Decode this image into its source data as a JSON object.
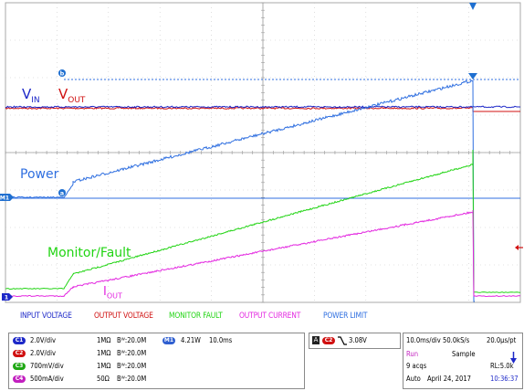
{
  "colors": {
    "vin": "#1d28c8",
    "vout": "#d01010",
    "power": "#2f6fe0",
    "monitor": "#22d414",
    "current": "#e327e0",
    "marker": "#1f6fd0"
  },
  "waveform_labels": {
    "vin_main": "V",
    "vin_sub": "IN",
    "vout_main": "V",
    "vout_sub": "OUT",
    "power": "Power",
    "monitor": "Monitor/Fault",
    "iout_main": "I",
    "iout_sub": "OUT"
  },
  "markers": {
    "ref_a": "b",
    "ref_b": "a",
    "m1": "M1",
    "ch1": "1"
  },
  "legend": [
    "INPUT VOLTAGE",
    "OUTPUT VOLTAGE",
    "MONITOR FAULT",
    "OUTPUT CURRENT",
    "POWER LIMIT"
  ],
  "channels": [
    {
      "id": "C1",
      "scale": "2.0V/div",
      "coupling": "1MΩ",
      "bw": "Bᵂ:20.0M",
      "color": "#1d28c8"
    },
    {
      "id": "C2",
      "scale": "2.0V/div",
      "coupling": "1MΩ",
      "bw": "Bᵂ:20.0M",
      "color": "#d01010"
    },
    {
      "id": "C3",
      "scale": "700mV/div",
      "coupling": "1MΩ",
      "bw": "Bᵂ:20.0M",
      "color": "#1fa814"
    },
    {
      "id": "C4",
      "scale": "500mA/div",
      "coupling": "50Ω",
      "bw": "Bᵂ:20.0M",
      "color": "#c21fbf"
    }
  ],
  "math": {
    "id": "M1",
    "scale": "4.21W",
    "time": "10.0ms",
    "color": "#2f5fd0"
  },
  "trigger": {
    "mode": "A",
    "source": "C2",
    "level": "3.08V"
  },
  "acquisition": {
    "timebase": "10.0ms/div",
    "sample_rate": "50.0kS/s",
    "resolution": "20.0μs/pt",
    "state": "Run",
    "mode": "Sample",
    "acqs": "9 acqs",
    "record_length": "RL:5.0k",
    "trigger_mode": "Auto",
    "date": "April 24, 2017",
    "time": "10:36:37"
  }
}
